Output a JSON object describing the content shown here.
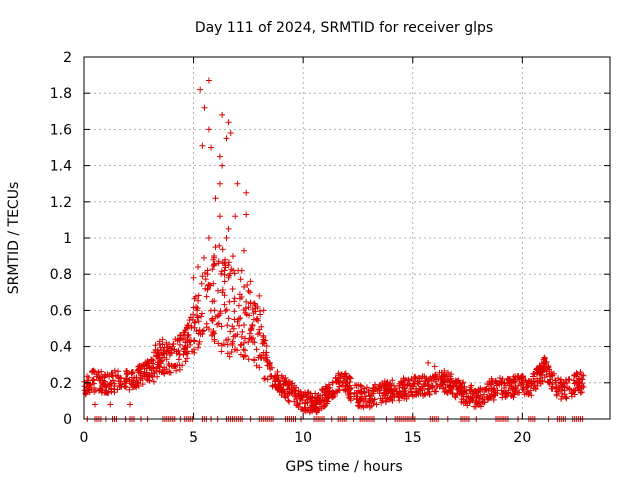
{
  "chart_data": {
    "type": "scatter",
    "title": "Day 111 of 2024, SRMTID for receiver glps",
    "xlabel": "GPS time / hours",
    "ylabel": "SRMTID / TECUs",
    "xlim": [
      0,
      24
    ],
    "ylim": [
      0,
      2
    ],
    "x_ticks": [
      0,
      5,
      10,
      15,
      20
    ],
    "y_ticks": [
      0,
      0.2,
      0.4,
      0.6,
      0.8,
      1,
      1.2,
      1.4,
      1.6,
      1.8,
      2
    ],
    "x_tick_labels": [
      "0",
      "5",
      "10",
      "15",
      "20"
    ],
    "y_tick_labels": [
      "0",
      "0.2",
      "0.4",
      "0.6",
      "0.8",
      "1",
      "1.2",
      "1.4",
      "1.6",
      "1.8",
      "2"
    ],
    "grid": true,
    "marker": "+",
    "marker_color": "#e00000",
    "series": [
      {
        "name": "SRMTID",
        "profile": [
          [
            0.0,
            0.19
          ],
          [
            0.5,
            0.21
          ],
          [
            1.0,
            0.2
          ],
          [
            1.5,
            0.21
          ],
          [
            2.0,
            0.22
          ],
          [
            2.5,
            0.23
          ],
          [
            3.0,
            0.27
          ],
          [
            3.5,
            0.35
          ],
          [
            4.0,
            0.33
          ],
          [
            4.5,
            0.38
          ],
          [
            5.0,
            0.5
          ],
          [
            5.3,
            0.62
          ],
          [
            5.6,
            0.72
          ],
          [
            6.0,
            0.68
          ],
          [
            6.5,
            0.66
          ],
          [
            7.0,
            0.6
          ],
          [
            7.5,
            0.55
          ],
          [
            8.0,
            0.45
          ],
          [
            8.5,
            0.24
          ],
          [
            9.0,
            0.19
          ],
          [
            9.5,
            0.14
          ],
          [
            10.0,
            0.1
          ],
          [
            10.5,
            0.08
          ],
          [
            11.0,
            0.12
          ],
          [
            11.5,
            0.18
          ],
          [
            11.8,
            0.22
          ],
          [
            12.2,
            0.16
          ],
          [
            12.5,
            0.13
          ],
          [
            13.0,
            0.12
          ],
          [
            14.0,
            0.16
          ],
          [
            15.0,
            0.17
          ],
          [
            16.0,
            0.2
          ],
          [
            16.5,
            0.21
          ],
          [
            17.0,
            0.17
          ],
          [
            17.5,
            0.13
          ],
          [
            18.0,
            0.12
          ],
          [
            18.5,
            0.16
          ],
          [
            19.0,
            0.17
          ],
          [
            20.0,
            0.18
          ],
          [
            20.5,
            0.19
          ],
          [
            21.0,
            0.28
          ],
          [
            21.5,
            0.18
          ],
          [
            22.0,
            0.16
          ],
          [
            22.5,
            0.2
          ],
          [
            22.8,
            0.2
          ]
        ],
        "outliers": [
          [
            5.3,
            1.82
          ],
          [
            5.5,
            1.72
          ],
          [
            5.7,
            1.87
          ],
          [
            5.7,
            1.6
          ],
          [
            5.4,
            1.51
          ],
          [
            5.8,
            1.5
          ],
          [
            6.3,
            1.68
          ],
          [
            6.2,
            1.45
          ],
          [
            6.3,
            1.4
          ],
          [
            6.2,
            1.3
          ],
          [
            6.5,
            1.55
          ],
          [
            6.6,
            1.64
          ],
          [
            6.7,
            1.58
          ],
          [
            6.0,
            1.22
          ],
          [
            6.2,
            1.12
          ],
          [
            6.5,
            1.0
          ],
          [
            6.6,
            1.05
          ],
          [
            6.9,
            1.12
          ],
          [
            7.0,
            1.3
          ],
          [
            7.4,
            1.25
          ],
          [
            7.4,
            1.13
          ],
          [
            5.7,
            1.0
          ],
          [
            6.0,
            0.95
          ],
          [
            5.9,
            0.88
          ],
          [
            6.8,
            0.9
          ],
          [
            7.3,
            0.93
          ],
          [
            6.4,
            0.86
          ],
          [
            5.0,
            0.78
          ],
          [
            5.2,
            0.84
          ],
          [
            6.6,
            0.78
          ],
          [
            7.2,
            0.82
          ],
          [
            7.6,
            0.76
          ],
          [
            8.0,
            0.68
          ],
          [
            7.8,
            0.63
          ],
          [
            8.2,
            0.6
          ],
          [
            0.5,
            0.08
          ],
          [
            1.2,
            0.08
          ],
          [
            2.1,
            0.08
          ],
          [
            10.6,
            0.04
          ],
          [
            15.7,
            0.31
          ],
          [
            21.0,
            0.34
          ],
          [
            16.0,
            0.29
          ]
        ],
        "zero_run_hours": [
          [
            0.5,
            0.8
          ],
          [
            1.3,
            1.5
          ],
          [
            2.1,
            2.3
          ],
          [
            3.6,
            4.2
          ],
          [
            4.6,
            5.0
          ],
          [
            5.4,
            5.6
          ],
          [
            6.5,
            7.3
          ],
          [
            8.0,
            8.7
          ],
          [
            9.2,
            9.7
          ],
          [
            10.5,
            11.0
          ],
          [
            11.6,
            12.0
          ],
          [
            12.6,
            13.3
          ],
          [
            14.2,
            15.1
          ],
          [
            15.8,
            16.2
          ],
          [
            17.2,
            17.6
          ],
          [
            18.8,
            19.4
          ],
          [
            20.3,
            20.6
          ],
          [
            21.6,
            22.0
          ],
          [
            22.3,
            22.8
          ]
        ],
        "zero_points": [
          0.15,
          1.0,
          1.9,
          2.6,
          2.9,
          4.4,
          5.8,
          6.1,
          7.6,
          9.9,
          11.3,
          12.3,
          13.8,
          16.6,
          17.9,
          19.8,
          21.2
        ],
        "noise_spread": 0.12,
        "peak_spread_extra": 0.45,
        "points_per_hour": 70
      }
    ]
  }
}
